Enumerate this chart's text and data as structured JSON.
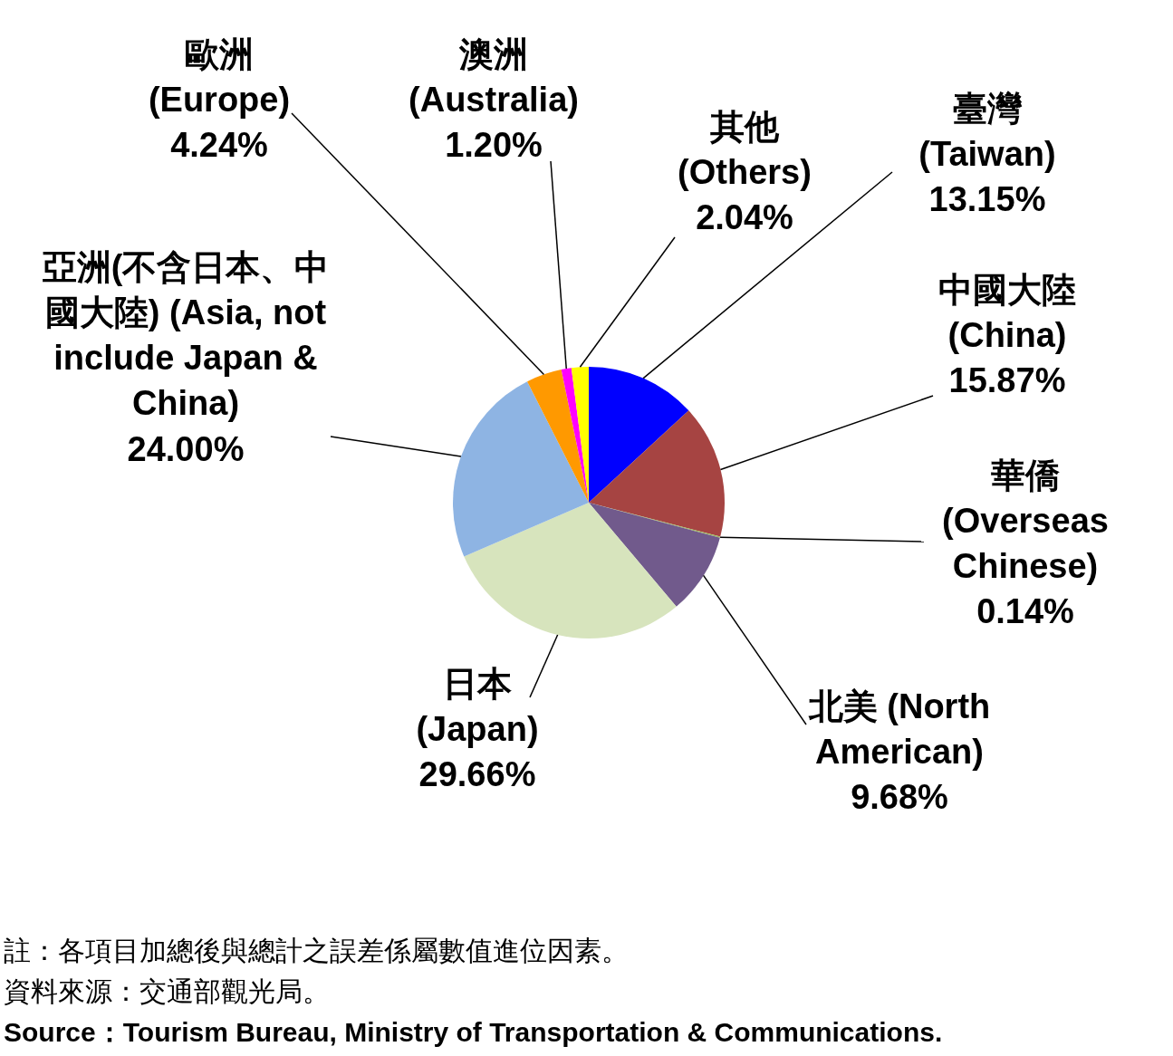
{
  "chart_data": {
    "type": "pie",
    "categories": [
      "臺灣 (Taiwan)",
      "中國大陸 (China)",
      "華僑 (Overseas Chinese)",
      "北美 (North American)",
      "日本 (Japan)",
      "亞洲(不含日本、中國大陸) (Asia, not include Japan & China)",
      "歐洲 (Europe)",
      "澳洲 (Australia)",
      "其他 (Others)"
    ],
    "values": [
      13.15,
      15.87,
      0.14,
      9.68,
      29.66,
      24.0,
      4.24,
      1.2,
      2.04
    ],
    "value_labels": [
      "13.15%",
      "15.87%",
      "0.14%",
      "9.68%",
      "29.66%",
      "24.00%",
      "4.24%",
      "1.20%",
      "2.04%"
    ],
    "colors": [
      "#0000ff",
      "#a64442",
      "#9bbb59",
      "#715a8c",
      "#d7e4bd",
      "#8eb4e3",
      "#ff9900",
      "#ff00ff",
      "#ffff00"
    ],
    "annotations": [
      "註：各項目加總後與總計之誤差係屬數值進位因素。",
      "資料來源：交通部觀光局。",
      "**Source：Tourism Bureau, Ministry of Transportation & Communications.**"
    ]
  }
}
